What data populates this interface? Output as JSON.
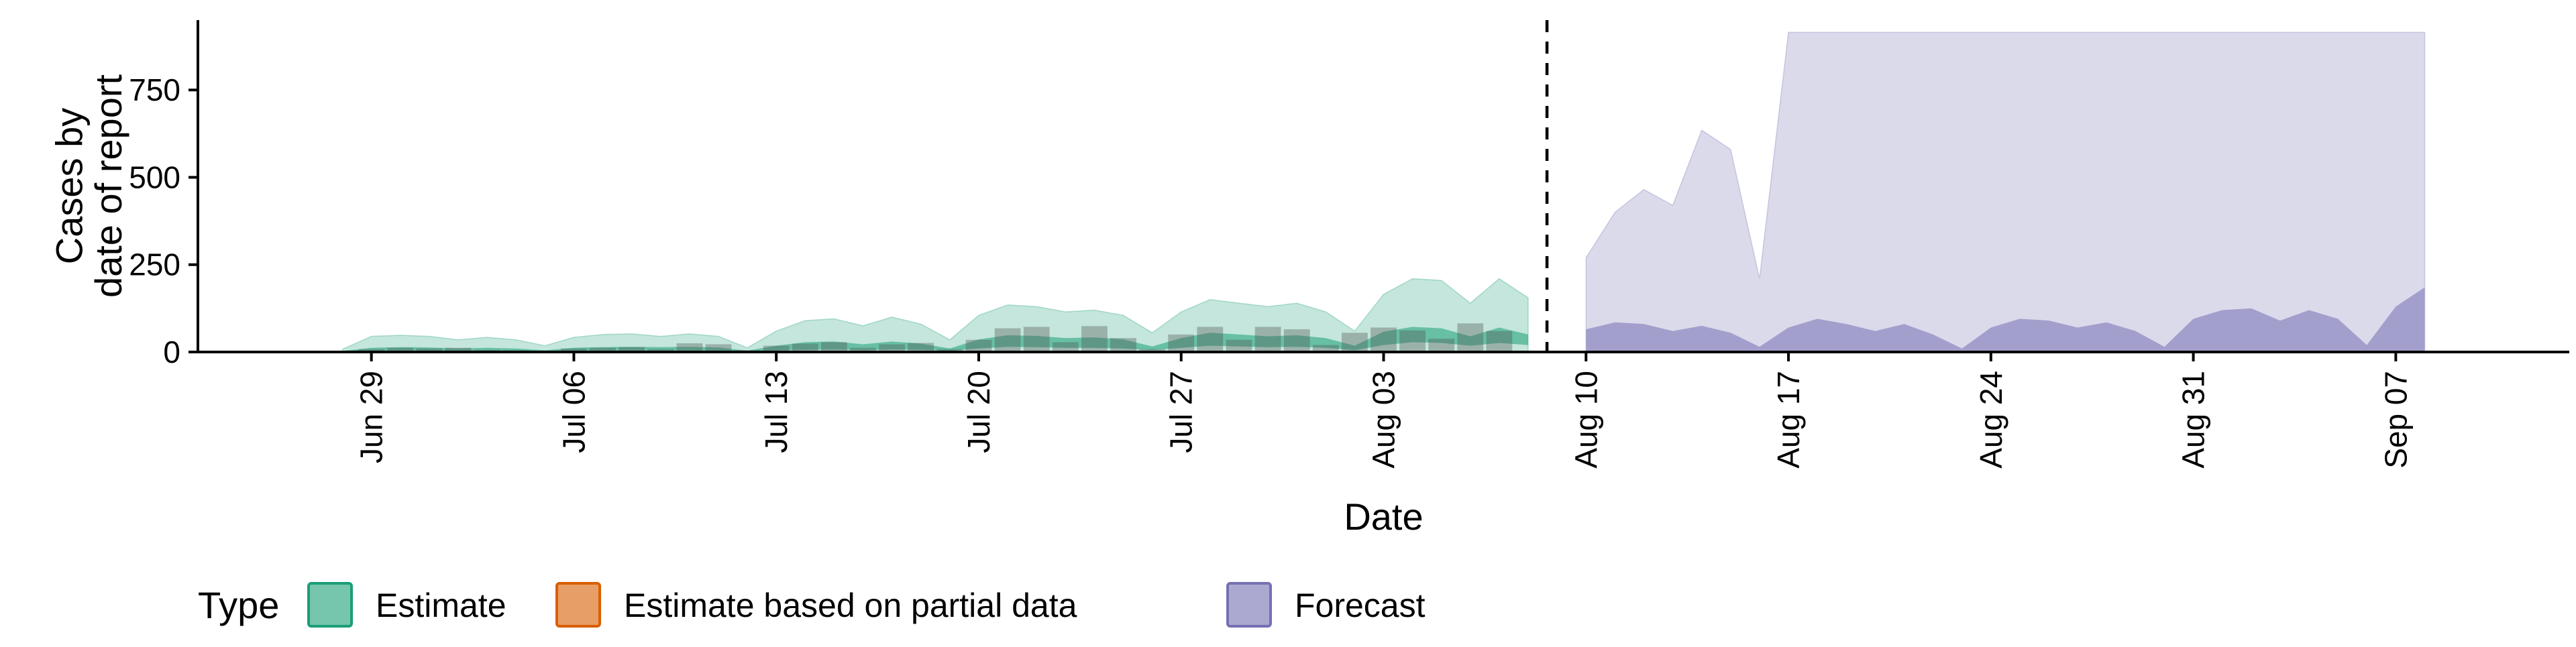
{
  "chart_data": {
    "type": "area",
    "xlabel": "Date",
    "ylabel_lines": [
      "Cases by",
      "date of report"
    ],
    "x_range": [
      "2020-06-23",
      "2020-09-13"
    ],
    "ylim": [
      0,
      950
    ],
    "y_ticks": [
      0,
      250,
      500,
      750
    ],
    "x_ticks": [
      {
        "date": "2020-06-29",
        "label": "Jun 29"
      },
      {
        "date": "2020-07-06",
        "label": "Jul 06"
      },
      {
        "date": "2020-07-13",
        "label": "Jul 13"
      },
      {
        "date": "2020-07-20",
        "label": "Jul 20"
      },
      {
        "date": "2020-07-27",
        "label": "Jul 27"
      },
      {
        "date": "2020-08-03",
        "label": "Aug 03"
      },
      {
        "date": "2020-08-10",
        "label": "Aug 10"
      },
      {
        "date": "2020-08-17",
        "label": "Aug 17"
      },
      {
        "date": "2020-08-24",
        "label": "Aug 24"
      },
      {
        "date": "2020-08-31",
        "label": "Aug 31"
      },
      {
        "date": "2020-09-07",
        "label": "Sep 07"
      }
    ],
    "forecast_start": "2020-08-09",
    "grid": false,
    "legend": {
      "placement": "bottom",
      "title": "Type",
      "entries": [
        {
          "label": "Estimate",
          "fill": "#1b9e77",
          "stroke": "#1b9e77"
        },
        {
          "label": "Estimate based on partial data",
          "fill": "#d95f02",
          "stroke": "#d95f02"
        },
        {
          "label": "Forecast",
          "fill": "#7570b3",
          "stroke": "#7570b3"
        }
      ]
    },
    "estimate": {
      "dates": [
        "2020-06-28",
        "2020-06-29",
        "2020-06-30",
        "2020-07-01",
        "2020-07-02",
        "2020-07-03",
        "2020-07-04",
        "2020-07-05",
        "2020-07-06",
        "2020-07-07",
        "2020-07-08",
        "2020-07-09",
        "2020-07-10",
        "2020-07-11",
        "2020-07-12",
        "2020-07-13",
        "2020-07-14",
        "2020-07-15",
        "2020-07-16",
        "2020-07-17",
        "2020-07-18",
        "2020-07-19",
        "2020-07-20",
        "2020-07-21",
        "2020-07-22",
        "2020-07-23",
        "2020-07-24",
        "2020-07-25",
        "2020-07-26",
        "2020-07-27",
        "2020-07-28",
        "2020-07-29",
        "2020-07-30",
        "2020-07-31",
        "2020-08-01",
        "2020-08-02",
        "2020-08-03",
        "2020-08-04",
        "2020-08-05",
        "2020-08-06",
        "2020-08-07",
        "2020-08-08"
      ],
      "outer_lower": [
        0,
        0,
        0,
        0,
        0,
        0,
        0,
        0,
        0,
        0,
        0,
        0,
        0,
        0,
        0,
        0,
        0,
        0,
        0,
        0,
        0,
        0,
        0,
        0,
        0,
        0,
        0,
        0,
        0,
        0,
        0,
        0,
        0,
        0,
        0,
        0,
        0,
        0,
        0,
        0,
        0,
        0
      ],
      "outer_upper": [
        8,
        45,
        48,
        45,
        35,
        42,
        35,
        18,
        42,
        50,
        52,
        45,
        52,
        45,
        12,
        60,
        90,
        95,
        75,
        100,
        80,
        35,
        105,
        135,
        130,
        115,
        120,
        105,
        55,
        115,
        150,
        140,
        130,
        140,
        115,
        60,
        165,
        210,
        205,
        140,
        210,
        155
      ],
      "inner_lower": [
        0,
        2,
        3,
        3,
        2,
        2,
        2,
        1,
        2,
        3,
        3,
        3,
        3,
        3,
        1,
        4,
        6,
        7,
        5,
        7,
        6,
        3,
        10,
        15,
        14,
        12,
        12,
        10,
        5,
        12,
        18,
        16,
        14,
        15,
        12,
        5,
        20,
        28,
        26,
        18,
        26,
        20
      ],
      "inner_upper": [
        3,
        12,
        14,
        13,
        10,
        12,
        10,
        5,
        12,
        14,
        15,
        14,
        15,
        13,
        4,
        18,
        28,
        30,
        22,
        30,
        24,
        10,
        36,
        48,
        46,
        40,
        42,
        36,
        16,
        40,
        55,
        50,
        45,
        48,
        40,
        18,
        58,
        72,
        68,
        45,
        70,
        50
      ]
    },
    "forecast": {
      "dates": [
        "2020-08-10",
        "2020-08-11",
        "2020-08-12",
        "2020-08-13",
        "2020-08-14",
        "2020-08-15",
        "2020-08-16",
        "2020-08-17",
        "2020-08-18",
        "2020-08-19",
        "2020-08-20",
        "2020-08-21",
        "2020-08-22",
        "2020-08-23",
        "2020-08-24",
        "2020-08-25",
        "2020-08-26",
        "2020-08-27",
        "2020-08-28",
        "2020-08-29",
        "2020-08-30",
        "2020-08-31",
        "2020-09-01",
        "2020-09-02",
        "2020-09-03",
        "2020-09-04",
        "2020-09-05",
        "2020-09-06",
        "2020-09-07",
        "2020-09-08"
      ],
      "outer_lower": [
        0,
        0,
        0,
        0,
        0,
        0,
        0,
        0,
        0,
        0,
        0,
        0,
        0,
        0,
        0,
        0,
        0,
        0,
        0,
        0,
        0,
        0,
        0,
        0,
        0,
        0,
        0,
        0,
        0,
        0
      ],
      "outer_upper": [
        270,
        400,
        465,
        420,
        635,
        580,
        210,
        915,
        915,
        915,
        915,
        915,
        915,
        915,
        915,
        915,
        915,
        915,
        915,
        915,
        915,
        915,
        915,
        915,
        915,
        915,
        915,
        915,
        915,
        915
      ],
      "inner_lower": [
        0,
        0,
        0,
        0,
        0,
        0,
        0,
        0,
        0,
        0,
        0,
        0,
        0,
        0,
        0,
        0,
        0,
        0,
        0,
        0,
        0,
        0,
        0,
        0,
        0,
        0,
        0,
        0,
        0,
        0
      ],
      "inner_upper": [
        65,
        85,
        80,
        60,
        75,
        55,
        15,
        70,
        95,
        80,
        60,
        80,
        50,
        10,
        70,
        95,
        90,
        70,
        85,
        60,
        15,
        95,
        120,
        125,
        90,
        120,
        95,
        20,
        130,
        185
      ]
    },
    "observed": {
      "dates": [
        "2020-06-29",
        "2020-06-30",
        "2020-07-01",
        "2020-07-02",
        "2020-07-03",
        "2020-07-04",
        "2020-07-05",
        "2020-07-06",
        "2020-07-07",
        "2020-07-08",
        "2020-07-09",
        "2020-07-10",
        "2020-07-11",
        "2020-07-12",
        "2020-07-13",
        "2020-07-14",
        "2020-07-15",
        "2020-07-16",
        "2020-07-17",
        "2020-07-18",
        "2020-07-19",
        "2020-07-20",
        "2020-07-21",
        "2020-07-22",
        "2020-07-23",
        "2020-07-24",
        "2020-07-25",
        "2020-07-26",
        "2020-07-27",
        "2020-07-28",
        "2020-07-29",
        "2020-07-30",
        "2020-07-31",
        "2020-08-01",
        "2020-08-02",
        "2020-08-03",
        "2020-08-04",
        "2020-08-05",
        "2020-08-06",
        "2020-08-07",
        "2020-08-08",
        "2020-08-09"
      ],
      "values": [
        8,
        12,
        10,
        12,
        6,
        5,
        3,
        10,
        12,
        14,
        8,
        25,
        22,
        5,
        18,
        24,
        28,
        12,
        22,
        26,
        8,
        35,
        68,
        72,
        28,
        74,
        40,
        8,
        50,
        72,
        35,
        72,
        65,
        20,
        55,
        70,
        62,
        38,
        82,
        60,
        3,
        2
      ]
    }
  }
}
